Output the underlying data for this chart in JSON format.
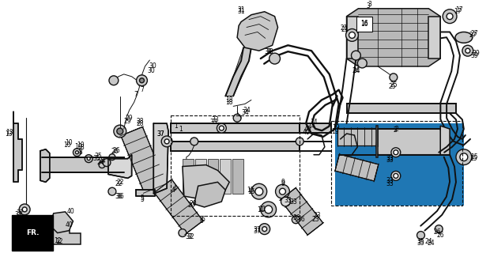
{
  "bg_color": "#ffffff",
  "line_color": "#111111",
  "figsize": [
    6.2,
    3.2
  ],
  "dpi": 100,
  "lw_pipe": 1.4,
  "lw_main": 1.1,
  "lw_thin": 0.7,
  "label_fs": 5.5,
  "pipe_fill": "#c8c8c8",
  "part_fill": "#b0b0b0",
  "white": "#ffffff"
}
